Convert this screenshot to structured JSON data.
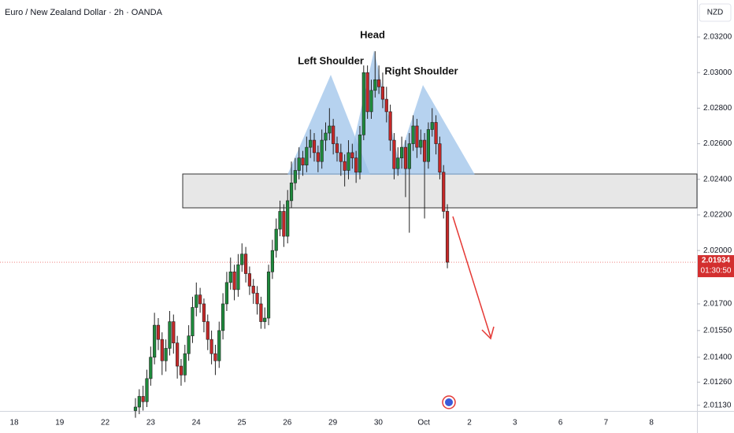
{
  "chart_data": {
    "type": "candlestick",
    "title": "Euro / New Zealand Dollar · 2h · OANDA",
    "currency": "NZD",
    "annotations": [
      "Head",
      "Left Shoulder",
      "Right Shoulder"
    ],
    "categories": [
      "18",
      "19",
      "22",
      "23",
      "24",
      "25",
      "26",
      "29",
      "30",
      "Oct",
      "2",
      "3",
      "6",
      "7",
      "8"
    ],
    "ylim": [
      2.01098,
      2.03408
    ],
    "yticks": [
      {
        "value": 2.032,
        "label": "2.03200"
      },
      {
        "value": 2.03,
        "label": "2.03000"
      },
      {
        "value": 2.028,
        "label": "2.02800"
      },
      {
        "value": 2.026,
        "label": "2.02600"
      },
      {
        "value": 2.024,
        "label": "2.02400"
      },
      {
        "value": 2.022,
        "label": "2.02200"
      },
      {
        "value": 2.02,
        "label": "2.02000"
      },
      {
        "value": 2.017,
        "label": "2.01700"
      },
      {
        "value": 2.0155,
        "label": "2.01550"
      },
      {
        "value": 2.014,
        "label": "2.01400"
      },
      {
        "value": 2.0126,
        "label": "2.01260"
      },
      {
        "value": 2.0113,
        "label": "2.01130"
      }
    ],
    "last_price": 2.01934,
    "countdown": "01:30:50",
    "up_color": "#1e8a3c",
    "down_color": "#c62828",
    "candles": [
      [
        2.011,
        2.0117,
        2.0106,
        2.0112
      ],
      [
        2.0112,
        2.0122,
        2.0108,
        2.0118
      ],
      [
        2.0118,
        2.0124,
        2.011,
        2.0115
      ],
      [
        2.0115,
        2.0133,
        2.0112,
        2.0128
      ],
      [
        2.0128,
        2.0146,
        2.0124,
        2.014
      ],
      [
        2.014,
        2.0165,
        2.0136,
        2.0158
      ],
      [
        2.0158,
        2.0162,
        2.0144,
        2.015
      ],
      [
        2.015,
        2.0154,
        2.013,
        2.0138
      ],
      [
        2.0138,
        2.015,
        2.0132,
        2.0145
      ],
      [
        2.0145,
        2.0166,
        2.0141,
        2.016
      ],
      [
        2.016,
        2.0164,
        2.0142,
        2.0148
      ],
      [
        2.0148,
        2.0152,
        2.0128,
        2.0135
      ],
      [
        2.0135,
        2.0139,
        2.0124,
        2.013
      ],
      [
        2.013,
        2.0147,
        2.0126,
        2.0142
      ],
      [
        2.0142,
        2.0158,
        2.0138,
        2.0152
      ],
      [
        2.0152,
        2.0174,
        2.0148,
        2.0168
      ],
      [
        2.0168,
        2.0182,
        2.0163,
        2.0175
      ],
      [
        2.0175,
        2.0179,
        2.0165,
        2.017
      ],
      [
        2.017,
        2.0173,
        2.0154,
        2.016
      ],
      [
        2.016,
        2.0164,
        2.0144,
        2.015
      ],
      [
        2.015,
        2.0155,
        2.0136,
        2.0142
      ],
      [
        2.0142,
        2.0147,
        2.013,
        2.0138
      ],
      [
        2.0138,
        2.016,
        2.0134,
        2.0155
      ],
      [
        2.0155,
        2.0176,
        2.015,
        2.017
      ],
      [
        2.017,
        2.0188,
        2.0166,
        2.0182
      ],
      [
        2.0182,
        2.0196,
        2.0178,
        2.0188
      ],
      [
        2.0188,
        2.0192,
        2.0172,
        2.0178
      ],
      [
        2.0178,
        2.0198,
        2.0174,
        2.0192
      ],
      [
        2.0192,
        2.0204,
        2.0188,
        2.0198
      ],
      [
        2.0198,
        2.0202,
        2.0182,
        2.0187
      ],
      [
        2.0187,
        2.0191,
        2.0175,
        2.018
      ],
      [
        2.018,
        2.0184,
        2.017,
        2.0176
      ],
      [
        2.0176,
        2.018,
        2.0164,
        2.017
      ],
      [
        2.017,
        2.0174,
        2.0156,
        2.016
      ],
      [
        2.016,
        2.0168,
        2.0156,
        2.0162
      ],
      [
        2.0162,
        2.0192,
        2.0158,
        2.0188
      ],
      [
        2.0188,
        2.0206,
        2.0184,
        2.02
      ],
      [
        2.02,
        2.0218,
        2.0196,
        2.0212
      ],
      [
        2.0212,
        2.0228,
        2.0208,
        2.0222
      ],
      [
        2.0222,
        2.0226,
        2.0202,
        2.0208
      ],
      [
        2.0208,
        2.0234,
        2.0204,
        2.0228
      ],
      [
        2.0228,
        2.025,
        2.0224,
        2.0238
      ],
      [
        2.0238,
        2.0252,
        2.0234,
        2.0245
      ],
      [
        2.0245,
        2.0258,
        2.024,
        2.0252
      ],
      [
        2.0252,
        2.0256,
        2.0242,
        2.0248
      ],
      [
        2.0248,
        2.0264,
        2.0244,
        2.0258
      ],
      [
        2.0258,
        2.0268,
        2.0252,
        2.0262
      ],
      [
        2.0262,
        2.0266,
        2.025,
        2.0255
      ],
      [
        2.0255,
        2.0259,
        2.0244,
        2.025
      ],
      [
        2.025,
        2.0268,
        2.0246,
        2.0262
      ],
      [
        2.0262,
        2.0272,
        2.0256,
        2.0266
      ],
      [
        2.0266,
        2.028,
        2.0262,
        2.027
      ],
      [
        2.027,
        2.0274,
        2.0254,
        2.026
      ],
      [
        2.026,
        2.0264,
        2.025,
        2.0255
      ],
      [
        2.0255,
        2.026,
        2.0242,
        2.025
      ],
      [
        2.025,
        2.0254,
        2.0236,
        2.0245
      ],
      [
        2.0245,
        2.0262,
        2.024,
        2.0255
      ],
      [
        2.0255,
        2.026,
        2.0246,
        2.0252
      ],
      [
        2.0252,
        2.0256,
        2.0238,
        2.0244
      ],
      [
        2.0244,
        2.027,
        2.024,
        2.0265
      ],
      [
        2.0265,
        2.0304,
        2.0262,
        2.03
      ],
      [
        2.03,
        2.0304,
        2.0274,
        2.0278
      ],
      [
        2.0278,
        2.0296,
        2.0274,
        2.029
      ],
      [
        2.029,
        2.0312,
        2.0286,
        2.0296
      ],
      [
        2.0296,
        2.0304,
        2.0288,
        2.0292
      ],
      [
        2.0292,
        2.03,
        2.028,
        2.0285
      ],
      [
        2.0285,
        2.0292,
        2.0272,
        2.0278
      ],
      [
        2.0278,
        2.0282,
        2.0256,
        2.0262
      ],
      [
        2.0262,
        2.0266,
        2.024,
        2.0246
      ],
      [
        2.0246,
        2.0258,
        2.0242,
        2.0252
      ],
      [
        2.0252,
        2.0264,
        2.0246,
        2.0258
      ],
      [
        2.0258,
        2.0262,
        2.023,
        2.0246
      ],
      [
        2.0246,
        2.0266,
        2.021,
        2.026
      ],
      [
        2.026,
        2.0276,
        2.0256,
        2.027
      ],
      [
        2.027,
        2.0274,
        2.0252,
        2.0258
      ],
      [
        2.0258,
        2.0268,
        2.0254,
        2.0262
      ],
      [
        2.0262,
        2.0266,
        2.0218,
        2.025
      ],
      [
        2.025,
        2.0272,
        2.0246,
        2.0268
      ],
      [
        2.0268,
        2.028,
        2.0264,
        2.0272
      ],
      [
        2.0272,
        2.0276,
        2.0254,
        2.026
      ],
      [
        2.026,
        2.0264,
        2.024,
        2.0244
      ],
      [
        2.0244,
        2.0248,
        2.0218,
        2.0222
      ],
      [
        2.0222,
        2.0226,
        2.019,
        2.01934
      ]
    ]
  }
}
